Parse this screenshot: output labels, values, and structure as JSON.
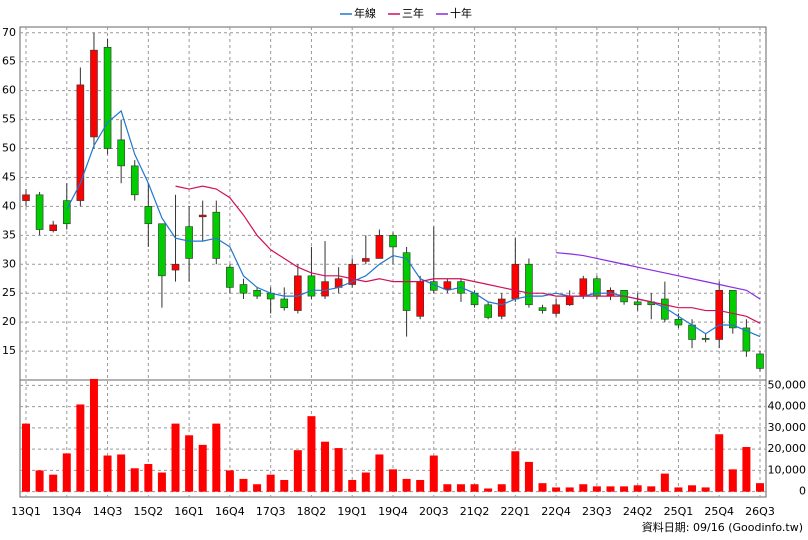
{
  "chart_data": {
    "type": "candlestick",
    "categories": [
      "13Q1",
      null,
      null,
      "13Q4",
      null,
      null,
      "14Q3",
      null,
      null,
      "15Q2",
      null,
      null,
      "16Q1",
      null,
      null,
      "16Q4",
      null,
      null,
      "17Q3",
      null,
      null,
      "18Q2",
      null,
      null,
      "19Q1",
      null,
      null,
      "19Q4",
      null,
      null,
      "20Q3",
      null,
      null,
      "21Q2",
      null,
      null,
      "22Q1",
      null,
      null,
      "22Q4",
      null,
      null,
      "23Q3",
      null,
      null,
      "24Q2",
      null,
      null,
      "25Q1",
      null,
      null,
      "25Q4",
      null,
      null,
      "26Q3"
    ],
    "open": [
      41,
      42,
      35.8,
      41,
      41,
      52,
      67.5,
      51.5,
      47,
      40,
      37,
      29,
      36.5,
      38.2,
      39,
      29.5,
      26.5,
      25.5,
      25,
      24,
      22,
      28,
      24.5,
      26,
      26.5,
      30.5,
      31,
      35,
      32,
      21,
      27,
      25.7,
      27,
      25,
      23,
      21,
      24,
      30,
      22.5,
      21.5,
      23,
      24.5,
      27.5,
      24.5,
      25.5,
      23.5,
      23.5,
      24,
      20.5,
      19.5,
      17.2,
      17,
      25.5,
      19,
      14.5
    ],
    "high": [
      43,
      42.5,
      37.5,
      44,
      64,
      70,
      69,
      55,
      48,
      44,
      37,
      42,
      40,
      41,
      41,
      30,
      27.5,
      26,
      26,
      26,
      30,
      33,
      34,
      29.5,
      31,
      35,
      36,
      35.5,
      33,
      28,
      36.5,
      27.5,
      27.5,
      25.5,
      23.5,
      25,
      34.5,
      31,
      23,
      24,
      25.5,
      28,
      28,
      26,
      25.5,
      25,
      25,
      27,
      21.5,
      20.5,
      18,
      27,
      25.5,
      20.5,
      15
    ],
    "low": [
      40,
      35,
      35.5,
      36,
      40,
      50,
      49,
      44,
      41,
      33,
      22.5,
      27,
      27,
      34,
      30,
      25,
      24,
      24,
      21.5,
      22,
      21.5,
      24,
      24,
      25,
      26,
      30,
      31,
      30,
      17.5,
      20.5,
      25,
      25,
      23.5,
      22.5,
      20.5,
      20.5,
      23.5,
      22.5,
      21.5,
      21,
      22.8,
      24,
      24,
      23.8,
      23,
      22,
      20.5,
      20,
      19,
      15.5,
      16.5,
      15.5,
      18,
      14,
      11.5
    ],
    "close": [
      42,
      36,
      36.8,
      37,
      61,
      67,
      50,
      47,
      42,
      37,
      28,
      30,
      31,
      38.5,
      31,
      26,
      25,
      24.5,
      24,
      22.5,
      28,
      24.5,
      27,
      27.5,
      30,
      31,
      35,
      33,
      22,
      27,
      25.5,
      27,
      25,
      23,
      20.8,
      24,
      30,
      23,
      22,
      23,
      24.5,
      27.5,
      24.5,
      25.5,
      23.5,
      23,
      23,
      20.5,
      19.5,
      17,
      17,
      25.5,
      19,
      15,
      12
    ],
    "up_color": "#ff0000",
    "down_color": "#00cc00",
    "series": [
      {
        "name": "年線",
        "color": "#1f77d0",
        "values": [
          null,
          null,
          null,
          39.5,
          44,
          50.5,
          54.5,
          56.5,
          49,
          44,
          38,
          34.5,
          34,
          34,
          34.5,
          33,
          28,
          26,
          25,
          24.5,
          24.5,
          25.5,
          25.5,
          26,
          27,
          28,
          30,
          31.5,
          31,
          27.5,
          26.5,
          25.5,
          26,
          25,
          23.5,
          23,
          24,
          24.5,
          24.5,
          25,
          24.5,
          24.5,
          25,
          25,
          24.5,
          24,
          23.5,
          22.5,
          21,
          19.5,
          18,
          19.5,
          19.5,
          18.5,
          17.5
        ]
      },
      {
        "name": "三年",
        "color": "#d0105a",
        "values": [
          null,
          null,
          null,
          null,
          null,
          null,
          null,
          null,
          null,
          null,
          null,
          43.5,
          43,
          43.5,
          43,
          41.5,
          38.5,
          35,
          32.5,
          31,
          29.5,
          28.5,
          28,
          28,
          27.5,
          27,
          27.5,
          27,
          27,
          27,
          27.5,
          27.5,
          27.5,
          27,
          26.5,
          26,
          25.5,
          25,
          25,
          24.5,
          24.5,
          24.5,
          24.5,
          24.5,
          24.5,
          24,
          23.5,
          23,
          22.5,
          22.5,
          22,
          22,
          21.5,
          21,
          19.8
        ]
      },
      {
        "name": "十年",
        "color": "#8a2be2",
        "values": [
          null,
          null,
          null,
          null,
          null,
          null,
          null,
          null,
          null,
          null,
          null,
          null,
          null,
          null,
          null,
          null,
          null,
          null,
          null,
          null,
          null,
          null,
          null,
          null,
          null,
          null,
          null,
          null,
          null,
          null,
          null,
          null,
          null,
          null,
          null,
          null,
          null,
          null,
          null,
          32,
          31.8,
          31.5,
          31,
          30.5,
          30,
          29.5,
          29,
          28.5,
          28,
          27.5,
          27,
          26.5,
          26,
          25.5,
          24
        ]
      }
    ],
    "ylim": [
      10,
      71
    ],
    "yticks": [
      15,
      20,
      25,
      30,
      35,
      40,
      45,
      50,
      55,
      60,
      65,
      70
    ],
    "grid": true,
    "legend": "top",
    "volume": {
      "color": "#ff0000",
      "values": [
        32000,
        10000,
        8000,
        18000,
        41000,
        53000,
        17000,
        17500,
        11000,
        13000,
        9000,
        32000,
        26500,
        22000,
        32000,
        10000,
        6000,
        3500,
        8000,
        5500,
        19500,
        35500,
        23500,
        20500,
        5500,
        9000,
        17500,
        10500,
        6000,
        5500,
        17000,
        3500,
        3500,
        3500,
        1500,
        3500,
        19000,
        14000,
        4000,
        2000,
        2000,
        3500,
        2500,
        2500,
        2500,
        3000,
        2500,
        8500,
        2000,
        3000,
        2000,
        27000,
        10500,
        21000,
        4000
      ],
      "ylim": [
        -2500,
        52500
      ],
      "yticks": [
        0,
        {
          "value": 10000,
          "label": "10,000"
        },
        {
          "value": 20000,
          "label": "20,000"
        },
        {
          "value": 30000,
          "label": "30,000"
        },
        {
          "value": 40000,
          "label": "40,000"
        },
        {
          "value": 50000,
          "label": "50,000"
        }
      ]
    },
    "footnote": "資料日期: 09/16 (Goodinfo.tw)"
  }
}
